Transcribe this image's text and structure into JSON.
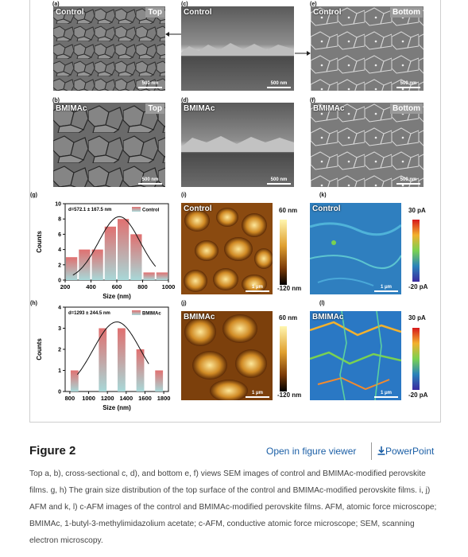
{
  "figure": {
    "panels": {
      "a": {
        "label": "(a)",
        "text": "Control",
        "tag": "Top",
        "scale": "500 nm"
      },
      "b": {
        "label": "(b)",
        "text": "BMIMAc",
        "tag": "Top",
        "scale": "500 nm"
      },
      "c": {
        "label": "(c)",
        "text": "Control",
        "scale": "500 nm"
      },
      "d": {
        "label": "(d)",
        "text": "BMIMAc",
        "scale": "500 nm"
      },
      "e": {
        "label": "(e)",
        "text": "Control",
        "tag": "Bottom",
        "scale": "500 nm"
      },
      "f": {
        "label": "(f)",
        "text": "BMIMAc",
        "tag": "Bottom",
        "scale": "500 nm"
      },
      "g": {
        "label": "(g)"
      },
      "h": {
        "label": "(h)"
      },
      "i": {
        "label": "(i)",
        "text": "Control",
        "scale": "1 μm",
        "cb_top": "60 nm",
        "cb_bottom": "-120 nm"
      },
      "j": {
        "label": "(j)",
        "text": "BMIMAc",
        "scale": "1 μm",
        "cb_top": "60 nm",
        "cb_bottom": "-120 nm"
      },
      "k": {
        "label": "(k)",
        "text": "Control",
        "scale": "1 μm",
        "cb_top": "30 pA",
        "cb_bottom": "-20 pA"
      },
      "l": {
        "label": "(l)",
        "text": "BMIMAc",
        "scale": "1 μm",
        "cb_top": "30 pA",
        "cb_bottom": "-20 pA"
      }
    },
    "colors": {
      "bar_top": "#e07070",
      "bar_bottom": "#a8d8d8",
      "fit_line": "#111111"
    }
  },
  "chart_data": [
    {
      "type": "bar",
      "panel": "(g)",
      "categories": [
        250,
        350,
        450,
        550,
        650,
        750,
        850,
        950
      ],
      "values": [
        3,
        4,
        4,
        7,
        8,
        6,
        1,
        1
      ],
      "fit": "gaussian",
      "fit_center": 620,
      "fit_peak": 8.3,
      "fit_sigma": 160,
      "annotation": "d=572.1 ± 167.5 nm",
      "legend": "Control",
      "xlabel": "Size (nm)",
      "ylabel": "Counts",
      "xlim": [
        200,
        1000
      ],
      "ylim": [
        0,
        10
      ],
      "xticks": [
        200,
        400,
        600,
        800,
        1000
      ],
      "yticks": [
        0,
        2,
        4,
        6,
        8,
        10
      ]
    },
    {
      "type": "bar",
      "panel": "(h)",
      "categories": [
        850,
        1150,
        1350,
        1550,
        1750
      ],
      "values": [
        1,
        3,
        3,
        2,
        1
      ],
      "fit": "gaussian",
      "fit_center": 1300,
      "fit_peak": 3.3,
      "fit_sigma": 250,
      "annotation": "d=1293 ± 244.5 nm",
      "legend": "BMIMAc",
      "xlabel": "Size (nm)",
      "ylabel": "Counts",
      "xlim": [
        750,
        1850
      ],
      "ylim": [
        0,
        4
      ],
      "xticks": [
        800,
        1000,
        1200,
        1400,
        1600,
        1800
      ],
      "yticks": [
        0,
        1,
        2,
        3,
        4
      ]
    }
  ],
  "header": {
    "title": "Figure 2",
    "viewer_link": "Open in figure viewer",
    "pp_icon": "download-icon",
    "pp_link": "PowerPoint"
  },
  "caption": "Top a, b), cross-sectional c, d), and bottom e, f) views SEM images of control and BMIMAc-modified perovskite films. g, h) The grain size distribution of the top surface of the control and BMIMAc-modified perovskite films. i, j) AFM and k, l) c-AFM images of the control and BMIMAc-modified perovskite films. AFM, atomic force microscope; BMIMAc, 1-butyl-3-methylimidazolium acetate; c-AFM, conductive atomic force microscope; SEM, scanning electron microscopy."
}
